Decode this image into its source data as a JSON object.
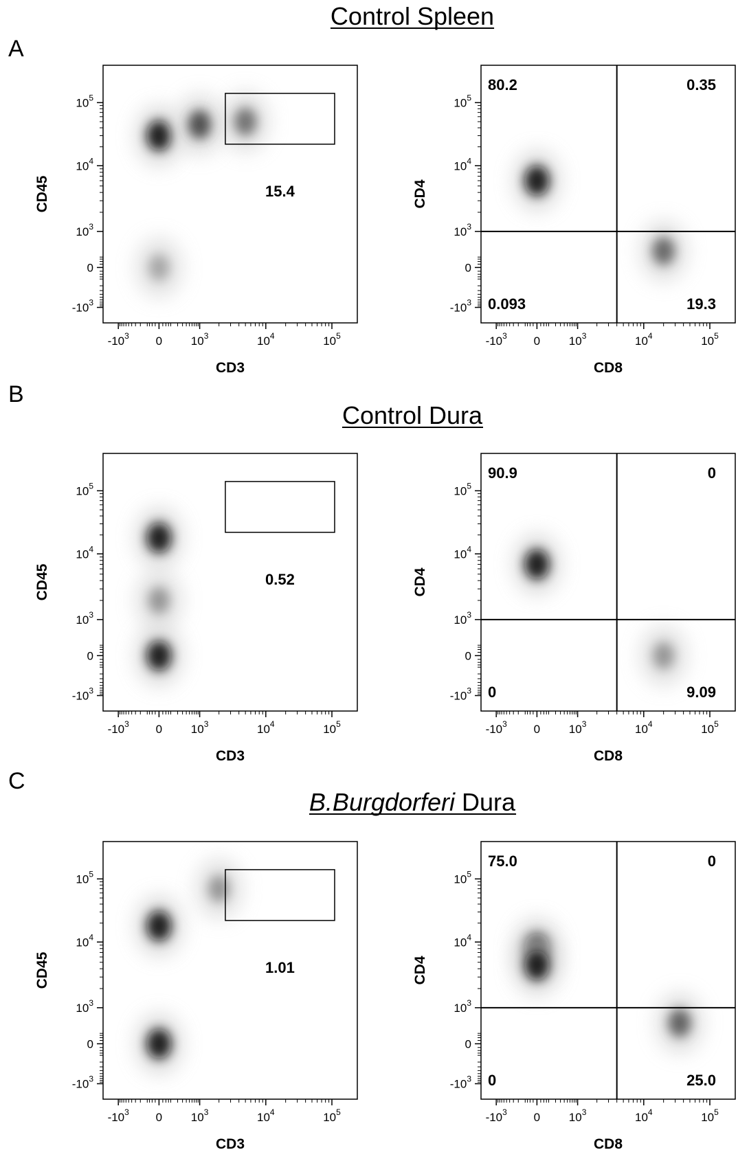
{
  "figure": {
    "panels": [
      {
        "letter": "A",
        "title_prefix": "",
        "title_italic": "",
        "title_rest": "Control Spleen"
      },
      {
        "letter": "B",
        "title_prefix": "",
        "title_italic": "",
        "title_rest": "Control Dura"
      },
      {
        "letter": "C",
        "title_prefix": "",
        "title_italic": "B.Burgdorferi",
        "title_rest": " Dura"
      }
    ]
  },
  "chart_data": [
    {
      "type": "scatter",
      "subtype": "density-plot",
      "panel": "A",
      "plot": "gate",
      "xlabel": "CD3",
      "ylabel": "CD45",
      "x_ticks": [
        "-10^3",
        "0",
        "10^3",
        "10^4",
        "10^5"
      ],
      "y_ticks": [
        "10^5",
        "10^4",
        "10^3",
        "0",
        "-10^3"
      ],
      "gate_values": [
        "15.4"
      ],
      "color": "#000000",
      "populations": [
        {
          "x": 0,
          "y": 30000,
          "intensity": 1.0
        },
        {
          "x": 1000,
          "y": 45000,
          "intensity": 0.7
        },
        {
          "x": 5000,
          "y": 50000,
          "intensity": 0.5
        },
        {
          "x": 0,
          "y": 0,
          "intensity": 0.2
        }
      ],
      "gate": {
        "x_min": 2500,
        "x_max": 110000,
        "y_min": 22000,
        "y_max": 140000
      }
    },
    {
      "type": "scatter",
      "subtype": "density-plot",
      "panel": "A",
      "plot": "quadrant",
      "xlabel": "CD8",
      "ylabel": "CD4",
      "x_ticks": [
        "-10^3",
        "0",
        "10^3",
        "10^4",
        "10^5"
      ],
      "y_ticks": [
        "10^5",
        "10^4",
        "10^3",
        "0",
        "-10^3"
      ],
      "quadrant_values": {
        "top_left": "80.2",
        "top_right": "0.35",
        "bottom_left": "0.093",
        "bottom_right": "19.3"
      },
      "color": "#000000",
      "populations": [
        {
          "x": 0,
          "y": 6000,
          "intensity": 1.0
        },
        {
          "x": 20000,
          "y": 200,
          "intensity": 0.55
        }
      ],
      "quadrant_split": {
        "x": 4000,
        "y": 1000
      }
    },
    {
      "type": "scatter",
      "subtype": "density-plot",
      "panel": "B",
      "plot": "gate",
      "xlabel": "CD3",
      "ylabel": "CD45",
      "x_ticks": [
        "-10^3",
        "0",
        "10^3",
        "10^4",
        "10^5"
      ],
      "y_ticks": [
        "10^5",
        "10^4",
        "10^3",
        "0",
        "-10^3"
      ],
      "gate_values": [
        "0.52"
      ],
      "color": "#000000",
      "populations": [
        {
          "x": 0,
          "y": 18000,
          "intensity": 1.0
        },
        {
          "x": 0,
          "y": 0,
          "intensity": 1.0
        },
        {
          "x": 0,
          "y": 2000,
          "intensity": 0.3
        }
      ],
      "gate": {
        "x_min": 2500,
        "x_max": 110000,
        "y_min": 22000,
        "y_max": 140000
      }
    },
    {
      "type": "scatter",
      "subtype": "density-plot",
      "panel": "B",
      "plot": "quadrant",
      "xlabel": "CD8",
      "ylabel": "CD4",
      "x_ticks": [
        "-10^3",
        "0",
        "10^3",
        "10^4",
        "10^5"
      ],
      "y_ticks": [
        "10^5",
        "10^4",
        "10^3",
        "0",
        "-10^3"
      ],
      "quadrant_values": {
        "top_left": "90.9",
        "top_right": "0",
        "bottom_left": "0",
        "bottom_right": "9.09"
      },
      "color": "#000000",
      "populations": [
        {
          "x": 0,
          "y": 7000,
          "intensity": 1.0
        },
        {
          "x": 20000,
          "y": 0,
          "intensity": 0.3
        }
      ],
      "quadrant_split": {
        "x": 4000,
        "y": 1000
      }
    },
    {
      "type": "scatter",
      "subtype": "density-plot",
      "panel": "C",
      "plot": "gate",
      "xlabel": "CD3",
      "ylabel": "CD45",
      "x_ticks": [
        "-10^3",
        "0",
        "10^3",
        "10^4",
        "10^5"
      ],
      "y_ticks": [
        "10^5",
        "10^4",
        "10^3",
        "0",
        "-10^3"
      ],
      "gate_values": [
        "1.01"
      ],
      "color": "#000000",
      "populations": [
        {
          "x": 0,
          "y": 18000,
          "intensity": 1.0
        },
        {
          "x": 0,
          "y": 0,
          "intensity": 1.0
        },
        {
          "x": 2000,
          "y": 70000,
          "intensity": 0.3
        }
      ],
      "gate": {
        "x_min": 2500,
        "x_max": 110000,
        "y_min": 22000,
        "y_max": 140000
      }
    },
    {
      "type": "scatter",
      "subtype": "density-plot",
      "panel": "C",
      "plot": "quadrant",
      "xlabel": "CD8",
      "ylabel": "CD4",
      "x_ticks": [
        "-10^3",
        "0",
        "10^3",
        "10^4",
        "10^5"
      ],
      "y_ticks": [
        "10^5",
        "10^4",
        "10^3",
        "0",
        "-10^3"
      ],
      "quadrant_values": {
        "top_left": "75.0",
        "top_right": "0",
        "bottom_left": "0",
        "bottom_right": "25.0"
      },
      "color": "#000000",
      "populations": [
        {
          "x": 0,
          "y": 8000,
          "intensity": 1.0
        },
        {
          "x": 0,
          "y": 4500,
          "intensity": 1.0
        },
        {
          "x": 35000,
          "y": 300,
          "intensity": 0.6
        }
      ],
      "quadrant_split": {
        "x": 4000,
        "y": 1000
      }
    }
  ]
}
